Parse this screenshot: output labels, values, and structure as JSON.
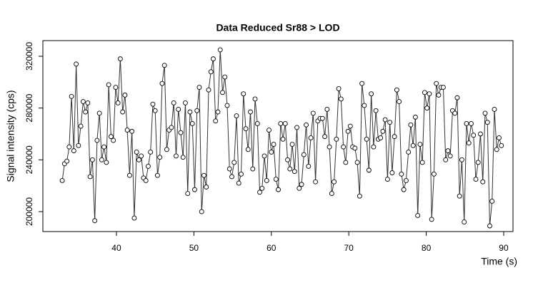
{
  "chart_data": {
    "type": "line",
    "title": "Data Reduced Sr88 > LOD",
    "x_label": "Time (s)",
    "y_label": "Signal intensity (cps)",
    "color": "#333333",
    "marker": "open-circle",
    "grid": false,
    "xlim": [
      30.5,
      91.2
    ],
    "ylim": [
      184600,
      332100
    ],
    "xticks": [
      40,
      50,
      60,
      70,
      80,
      90
    ],
    "yticks": [
      200000,
      240000,
      280000,
      320000
    ],
    "x": [
      33.0,
      33.3,
      33.6,
      33.9,
      34.2,
      34.5,
      34.8,
      35.1,
      35.4,
      35.7,
      36.0,
      36.3,
      36.6,
      36.9,
      37.2,
      37.5,
      37.8,
      38.1,
      38.4,
      38.7,
      39.0,
      39.3,
      39.6,
      39.9,
      40.2,
      40.5,
      40.8,
      41.1,
      41.4,
      41.7,
      42.0,
      42.3,
      42.6,
      42.9,
      43.2,
      43.5,
      43.8,
      44.1,
      44.4,
      44.7,
      45.0,
      45.3,
      45.6,
      45.9,
      46.2,
      46.5,
      46.8,
      47.1,
      47.4,
      47.7,
      48.0,
      48.3,
      48.6,
      48.9,
      49.2,
      49.5,
      49.8,
      50.1,
      50.4,
      50.7,
      51.0,
      51.3,
      51.6,
      51.9,
      52.2,
      52.5,
      52.8,
      53.1,
      53.4,
      53.7,
      54.0,
      54.3,
      54.6,
      54.9,
      55.2,
      55.5,
      55.8,
      56.1,
      56.4,
      56.7,
      57.0,
      57.3,
      57.6,
      57.9,
      58.2,
      58.5,
      58.8,
      59.1,
      59.4,
      59.7,
      60.0,
      60.3,
      60.6,
      60.9,
      61.2,
      61.5,
      61.8,
      62.1,
      62.4,
      62.7,
      63.0,
      63.3,
      63.6,
      63.9,
      64.2,
      64.5,
      64.8,
      65.1,
      65.4,
      65.7,
      66.0,
      66.3,
      66.6,
      66.9,
      67.2,
      67.5,
      67.8,
      68.1,
      68.4,
      68.7,
      69.0,
      69.3,
      69.6,
      69.9,
      70.2,
      70.5,
      70.8,
      71.1,
      71.4,
      71.7,
      72.0,
      72.3,
      72.6,
      72.9,
      73.2,
      73.5,
      73.8,
      74.1,
      74.4,
      74.7,
      75.0,
      75.3,
      75.6,
      75.9,
      76.2,
      76.5,
      76.8,
      77.1,
      77.4,
      77.7,
      78.0,
      78.3,
      78.6,
      78.9,
      79.2,
      79.5,
      79.8,
      80.1,
      80.4,
      80.7,
      81.0,
      81.3,
      81.6,
      81.9,
      82.2,
      82.5,
      82.8,
      83.1,
      83.4,
      83.7,
      84.0,
      84.3,
      84.6,
      84.9,
      85.2,
      85.5,
      85.8,
      86.1,
      86.4,
      86.7,
      87.0,
      87.3,
      87.6,
      87.9,
      88.2,
      88.5,
      88.8,
      89.1,
      89.4,
      89.7
    ],
    "values": [
      224000,
      237000,
      239000,
      250000,
      289000,
      247000,
      314000,
      251000,
      266000,
      285000,
      277000,
      284000,
      227000,
      240000,
      193000,
      255000,
      276000,
      240000,
      250000,
      238000,
      298000,
      258000,
      255000,
      296000,
      284000,
      318000,
      277000,
      290000,
      263000,
      228000,
      262000,
      195000,
      246000,
      240000,
      243000,
      226000,
      224000,
      235000,
      246000,
      283000,
      278000,
      228000,
      242000,
      299000,
      313000,
      248000,
      263000,
      265000,
      284000,
      243000,
      279000,
      261000,
      242000,
      284000,
      214000,
      277000,
      268000,
      217000,
      278000,
      296000,
      200000,
      228000,
      219000,
      294000,
      308000,
      318000,
      270000,
      277000,
      325000,
      292000,
      304000,
      282000,
      233000,
      227000,
      238000,
      274000,
      222000,
      229000,
      291000,
      264000,
      248000,
      277000,
      233000,
      287000,
      268000,
      215000,
      218000,
      243000,
      224000,
      263000,
      246000,
      252000,
      225000,
      217000,
      268000,
      256000,
      268000,
      240000,
      233000,
      252000,
      231000,
      265000,
      218000,
      221000,
      244000,
      267000,
      235000,
      257000,
      276000,
      223000,
      270000,
      272000,
      272000,
      258000,
      279000,
      250000,
      214000,
      223000,
      256000,
      295000,
      287000,
      250000,
      238000,
      262000,
      266000,
      250000,
      249000,
      238000,
      212000,
      299000,
      282000,
      256000,
      232000,
      291000,
      250000,
      278000,
      256000,
      257000,
      262000,
      271000,
      225000,
      269000,
      230000,
      258000,
      294000,
      285000,
      229000,
      217000,
      224000,
      246000,
      267000,
      251000,
      273000,
      197000,
      252000,
      238000,
      292000,
      280000,
      291000,
      194000,
      229000,
      299000,
      290000,
      296000,
      296000,
      240000,
      247000,
      243000,
      278000,
      276000,
      288000,
      212000,
      240000,
      192000,
      268000,
      253000,
      268000,
      259000,
      225000,
      238000,
      260000,
      223000,
      276000,
      269000,
      189000,
      208000,
      279000,
      248000,
      257000,
      251000
    ]
  }
}
